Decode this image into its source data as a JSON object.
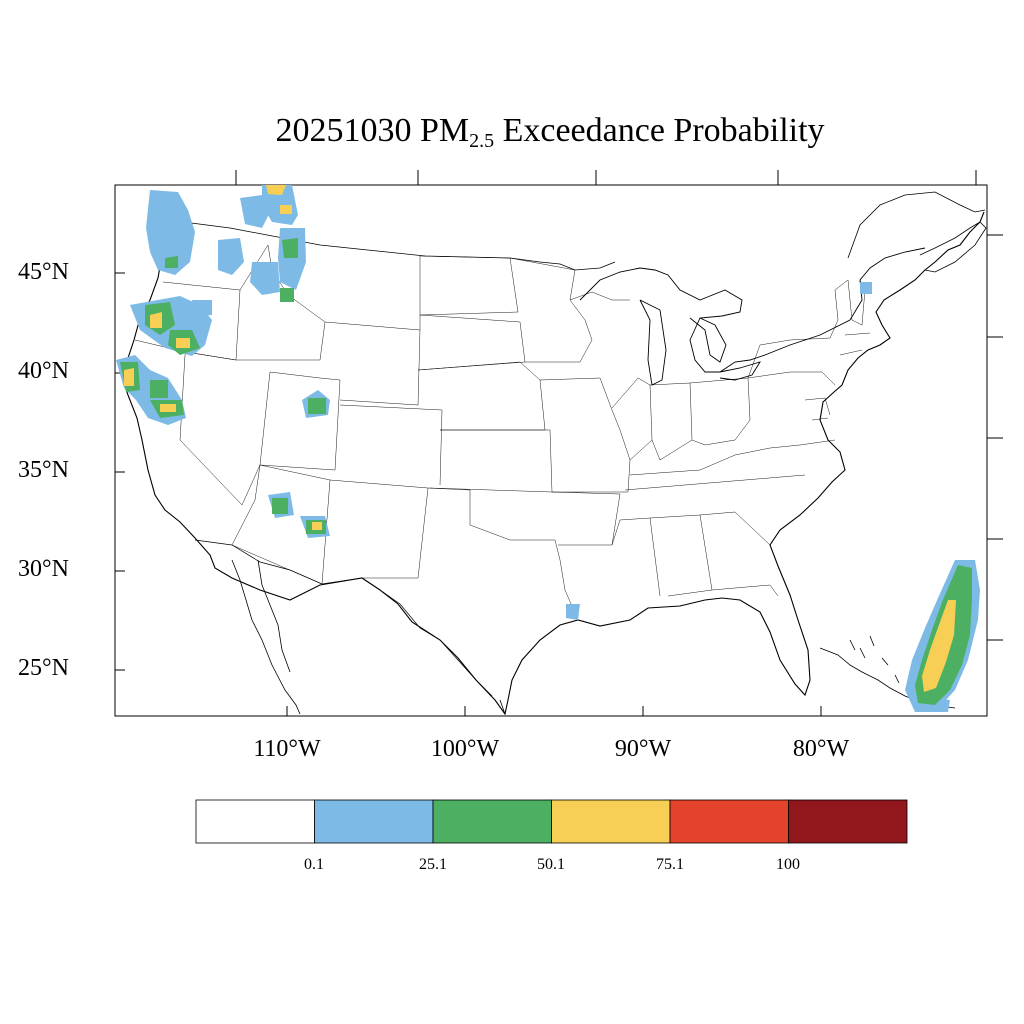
{
  "title": {
    "date": "20251030",
    "pollutant": "PM",
    "pollutant_sub": "2.5",
    "rest": "Exceedance Probability"
  },
  "lat_labels": [
    "45°N",
    "40°N",
    "35°N",
    "30°N",
    "25°N"
  ],
  "lon_labels": [
    "110°W",
    "100°W",
    "90°W",
    "80°W"
  ],
  "colorbar": {
    "colors": [
      "#ffffff",
      "#7dbbe6",
      "#4caf62",
      "#f8cf55",
      "#e2432a",
      "#92171c"
    ],
    "labels": [
      "0.1",
      "25.1",
      "50.1",
      "75.1",
      "100"
    ]
  },
  "probability_colors": {
    "low": "#7dbbe6",
    "moderate": "#4caf62",
    "high": "#f8cf55"
  }
}
